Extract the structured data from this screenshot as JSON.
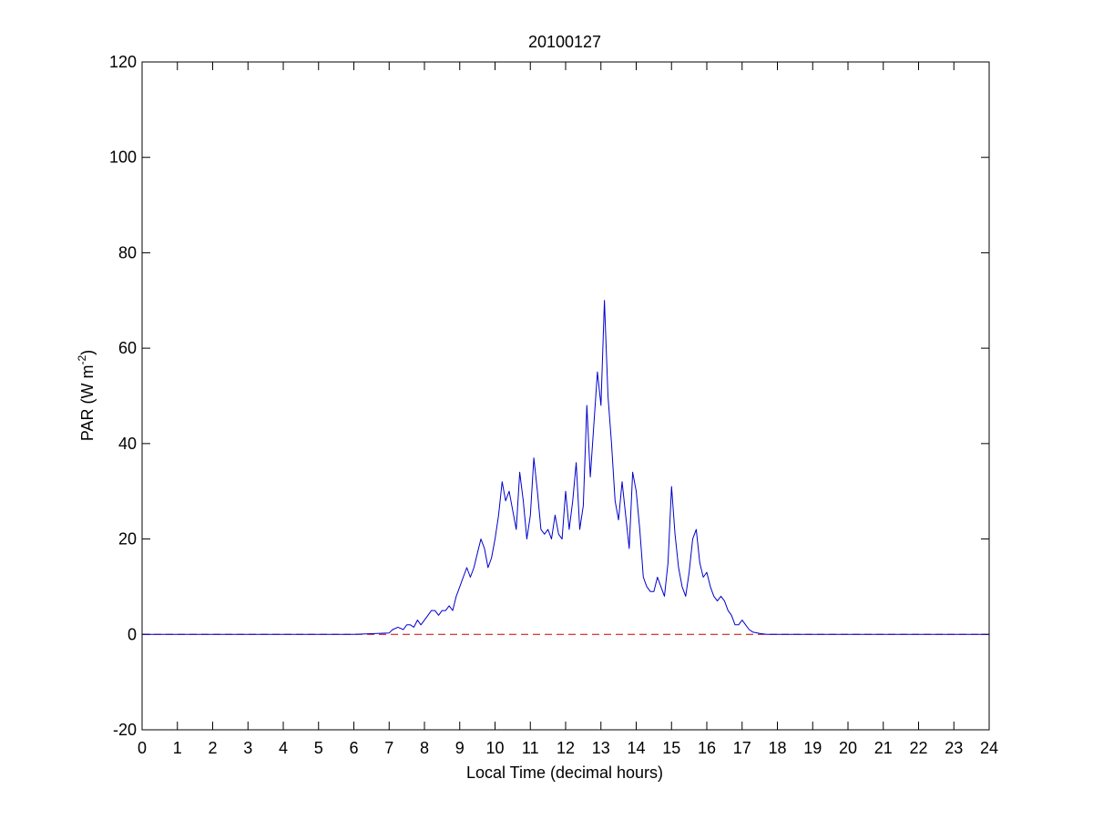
{
  "chart_data": {
    "type": "line",
    "title": "20100127",
    "xlabel": "Local Time (decimal hours)",
    "ylabel": "PAR (W m^-2)",
    "ylabel_parts": {
      "base": "PAR (W m",
      "sup": "-2",
      "close": ")"
    },
    "xlim": [
      0,
      24
    ],
    "ylim": [
      -20,
      120
    ],
    "xticks": [
      0,
      1,
      2,
      3,
      4,
      5,
      6,
      7,
      8,
      9,
      10,
      11,
      12,
      13,
      14,
      15,
      16,
      17,
      18,
      19,
      20,
      21,
      22,
      23,
      24
    ],
    "yticks": [
      -20,
      0,
      20,
      40,
      60,
      80,
      100,
      120
    ],
    "grid": false,
    "legend": "none",
    "colors": {
      "series": "#0000cc",
      "baseline": "#cc0000"
    },
    "series": [
      {
        "values_x": [
          0,
          1,
          2,
          3,
          4,
          5,
          6,
          7.0,
          7.1,
          7.25,
          7.4,
          7.5,
          7.6,
          7.7,
          7.8,
          7.9,
          8.0,
          8.1,
          8.2,
          8.3,
          8.4,
          8.5,
          8.6,
          8.7,
          8.8,
          8.9,
          9.0,
          9.1,
          9.2,
          9.3,
          9.4,
          9.5,
          9.6,
          9.7,
          9.8,
          9.9,
          10.0,
          10.1,
          10.2,
          10.3,
          10.4,
          10.5,
          10.6,
          10.7,
          10.8,
          10.9,
          11.0,
          11.1,
          11.2,
          11.3,
          11.4,
          11.5,
          11.6,
          11.7,
          11.8,
          11.9,
          12.0,
          12.1,
          12.2,
          12.3,
          12.4,
          12.5,
          12.6,
          12.7,
          12.8,
          12.9,
          13.0,
          13.1,
          13.2,
          13.3,
          13.4,
          13.5,
          13.6,
          13.7,
          13.8,
          13.9,
          14.0,
          14.1,
          14.2,
          14.3,
          14.4,
          14.5,
          14.6,
          14.7,
          14.8,
          14.9,
          15.0,
          15.1,
          15.2,
          15.3,
          15.4,
          15.5,
          15.6,
          15.7,
          15.8,
          15.9,
          16.0,
          16.1,
          16.2,
          16.3,
          16.4,
          16.5,
          16.6,
          16.7,
          16.8,
          16.9,
          17.0,
          17.1,
          17.2,
          17.3,
          17.5,
          17.7,
          18,
          19,
          20,
          21,
          22,
          23,
          24
        ],
        "values_y": [
          0,
          0,
          0,
          0,
          0,
          0,
          0,
          0.3,
          1,
          1.5,
          1,
          2,
          2,
          1.5,
          3,
          2,
          3,
          4,
          5,
          5,
          4,
          5,
          5,
          6,
          5,
          8,
          10,
          12,
          14,
          12,
          14,
          17,
          20,
          18,
          14,
          16,
          20,
          25,
          32,
          28,
          30,
          26,
          22,
          34,
          28,
          20,
          25,
          37,
          30,
          22,
          21,
          22,
          20,
          25,
          21,
          20,
          30,
          22,
          28,
          36,
          22,
          27,
          48,
          33,
          44,
          55,
          48,
          70,
          50,
          40,
          28,
          24,
          32,
          25,
          18,
          34,
          30,
          22,
          12,
          10,
          9,
          9,
          12,
          10,
          8,
          15,
          31,
          21,
          14,
          10,
          8,
          13,
          20,
          22,
          15,
          12,
          13,
          10,
          8,
          7,
          8,
          7,
          5,
          4,
          2,
          2,
          3,
          2,
          1,
          0.5,
          0.2,
          0,
          0,
          0,
          0,
          0,
          0,
          0,
          0
        ]
      }
    ],
    "baseline_y": 0
  }
}
